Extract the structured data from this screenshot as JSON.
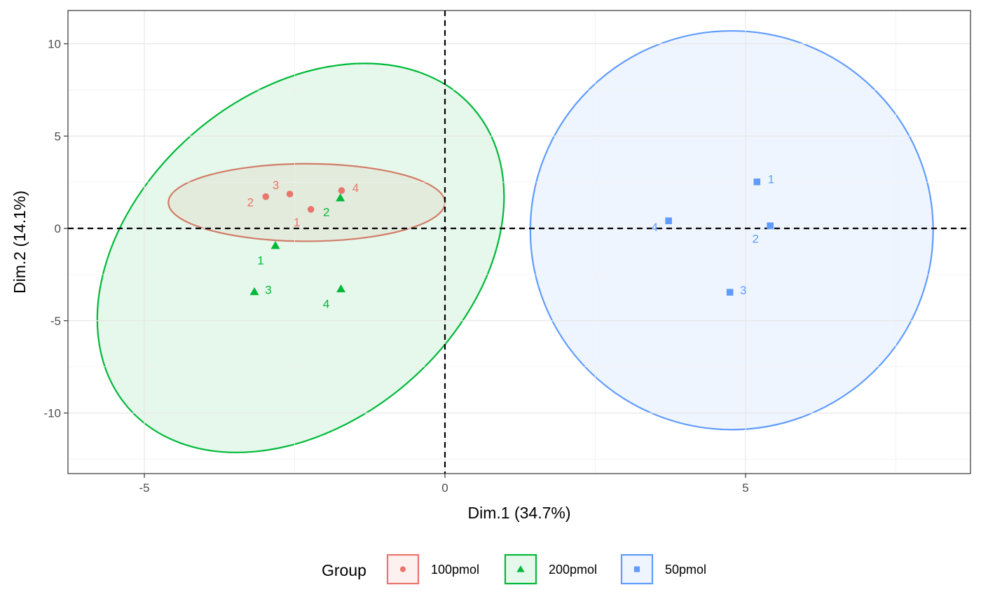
{
  "chart_data": {
    "type": "scatter",
    "title": "",
    "xlabel": "Dim.1 (34.7%)",
    "ylabel": "Dim.2 (14.1%)",
    "xlim": [
      -6.3,
      8.7
    ],
    "ylim": [
      -13.2,
      11.8
    ],
    "x_ticks": [
      -5,
      0,
      5
    ],
    "x_tick_labels": [
      "-5",
      "0",
      "5"
    ],
    "y_ticks": [
      -10,
      -5,
      0,
      5,
      10
    ],
    "y_tick_labels": [
      "-10",
      "-5",
      "0",
      "5",
      "10"
    ],
    "grid": true,
    "reference_lines": {
      "x": 0,
      "y": 0,
      "style": "dashed"
    },
    "legend": {
      "title": "Group",
      "position": "bottom"
    },
    "series": [
      {
        "name": "100pmol",
        "color": "#e9756b",
        "shape": "circle",
        "points": [
          {
            "label": "1",
            "x": -2.23,
            "y": 1.03
          },
          {
            "label": "2",
            "x": -2.98,
            "y": 1.72
          },
          {
            "label": "3",
            "x": -2.58,
            "y": 1.86
          },
          {
            "label": "4",
            "x": -1.72,
            "y": 2.05
          }
        ],
        "ellipse": {
          "cx": -2.3,
          "cy": 1.4,
          "rx": 2.3,
          "ry": 2.1,
          "angle": 0
        }
      },
      {
        "name": "200pmol",
        "color": "#00b938",
        "shape": "triangle",
        "points": [
          {
            "label": "1",
            "x": -2.82,
            "y": -0.93
          },
          {
            "label": "2",
            "x": -1.74,
            "y": 1.65
          },
          {
            "label": "3",
            "x": -3.17,
            "y": -3.43
          },
          {
            "label": "4",
            "x": -1.73,
            "y": -3.28
          }
        ],
        "ellipse": {
          "cx": -2.4,
          "cy": -1.6,
          "rx": 3.8,
          "ry": 8.9,
          "angle": -41
        }
      },
      {
        "name": "50pmol",
        "color": "#609cff",
        "shape": "square",
        "points": [
          {
            "label": "1",
            "x": 5.19,
            "y": 2.52
          },
          {
            "label": "2",
            "x": 5.41,
            "y": 0.14
          },
          {
            "label": "3",
            "x": 4.74,
            "y": -3.46
          },
          {
            "label": "4",
            "x": 3.72,
            "y": 0.41
          }
        ],
        "ellipse": {
          "cx": 4.77,
          "cy": -0.1,
          "rx": 3.35,
          "ry": 10.8,
          "angle": 0
        }
      }
    ]
  }
}
